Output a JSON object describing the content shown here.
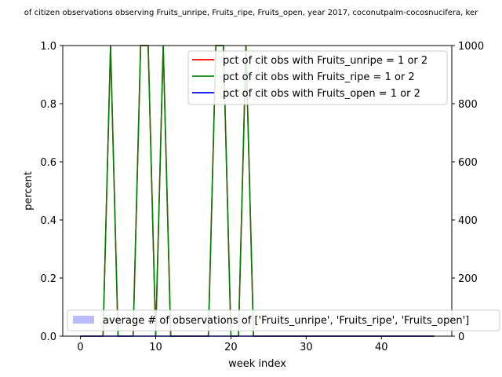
{
  "chart_data": {
    "type": "line",
    "title": "of citizen observations observing Fruits_unripe, Fruits_ripe, Fruits_open, year 2017, coconutpalm-cocosnucifera, ker",
    "xlabel": "week index",
    "ylabel": "percent",
    "xlim": [
      -2.35,
      49.35
    ],
    "ylim": [
      0,
      1
    ],
    "y2lim": [
      0,
      1000
    ],
    "x_ticks": [
      "0",
      "10",
      "20",
      "30",
      "40"
    ],
    "y_ticks": [
      "0.0",
      "0.2",
      "0.4",
      "0.6",
      "0.8",
      "1.0"
    ],
    "y2_ticks": [
      "0",
      "200",
      "400",
      "600",
      "800",
      "1000"
    ],
    "grid": false,
    "legend_placement": "top-right",
    "x": [
      0,
      1,
      2,
      3,
      4,
      5,
      6,
      7,
      8,
      9,
      10,
      11,
      12,
      13,
      14,
      15,
      16,
      17,
      18,
      19,
      20,
      21,
      22,
      23,
      24,
      25,
      26,
      27,
      28,
      29,
      30,
      31,
      32,
      33,
      34,
      35,
      36,
      37,
      38,
      39,
      40,
      41,
      42,
      43,
      44,
      45,
      46,
      47
    ],
    "series": [
      {
        "name": "pct of cit obs with Fruits_unripe = 1 or 2",
        "color": "#ff0000",
        "values": [
          0,
          0,
          0,
          0,
          1,
          0,
          0,
          0,
          1,
          1,
          0,
          1,
          0,
          0,
          0,
          0,
          0,
          0,
          1,
          1,
          0,
          0,
          1,
          0,
          0,
          0,
          0,
          0,
          0,
          0,
          0,
          0,
          0,
          0,
          0,
          0,
          0,
          0,
          0,
          0,
          0,
          0,
          0,
          0,
          0,
          0,
          0,
          0
        ]
      },
      {
        "name": "pct of cit obs with Fruits_ripe = 1 or 2",
        "color": "#008000",
        "values": [
          0,
          0,
          0,
          0,
          1,
          0,
          0,
          0,
          1,
          1,
          0,
          1,
          0,
          0,
          0,
          0,
          0,
          0,
          1,
          1,
          0,
          0,
          1,
          0,
          0,
          0,
          0,
          0,
          0,
          0,
          0,
          0,
          0,
          0,
          0,
          0,
          0,
          0,
          0,
          0,
          0,
          0,
          0,
          0,
          0,
          0,
          0,
          0
        ]
      },
      {
        "name": "pct of cit obs with Fruits_open = 1 or 2",
        "color": "#0000ff",
        "values": [
          0,
          0,
          0,
          0,
          0,
          0,
          0,
          0,
          0,
          0,
          0,
          0,
          0,
          0,
          0,
          0,
          0,
          0,
          0,
          0,
          0,
          0,
          0,
          0,
          0,
          0,
          0,
          0,
          0,
          0,
          0,
          0,
          0,
          0,
          0,
          0,
          0,
          0,
          0,
          0,
          0,
          0,
          0,
          0,
          0,
          0,
          0,
          0
        ]
      }
    ],
    "bar_series": {
      "name": "average # of observations of ['Fruits_unripe', 'Fruits_ripe', 'Fruits_open']",
      "color": "#bbbbff",
      "values": []
    },
    "bar_legend_placement": "lower-left"
  }
}
